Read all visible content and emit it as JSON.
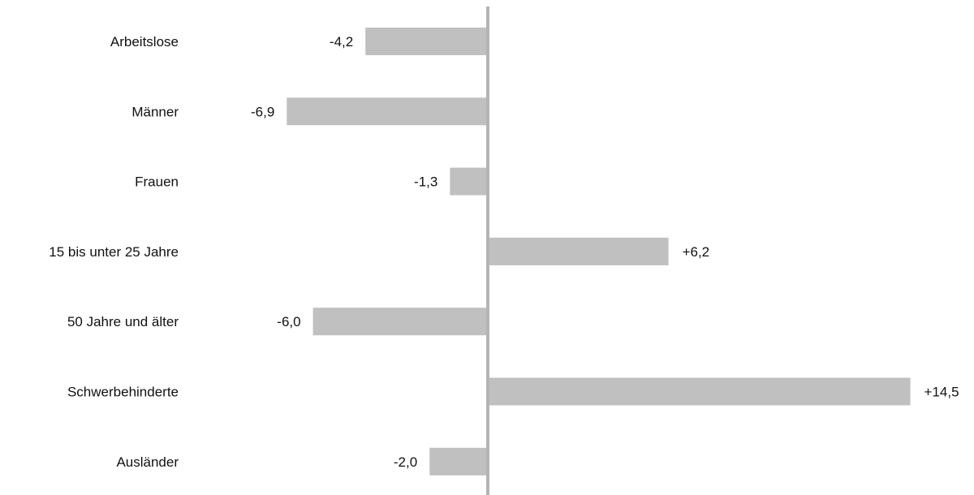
{
  "chart_data": {
    "type": "bar",
    "orientation": "horizontal",
    "categories": [
      "Arbeitslose",
      "Männer",
      "Frauen",
      "15 bis unter 25 Jahre",
      "50 Jahre und älter",
      "Schwerbehinderte",
      "Ausländer"
    ],
    "values": [
      -4.2,
      -6.9,
      -1.3,
      6.2,
      -6.0,
      14.5,
      -2.0
    ],
    "value_labels": [
      "-4,2",
      "-6,9",
      "-1,3",
      "+6,2",
      "-6,0",
      "+14,5",
      "-2,0"
    ],
    "title": "",
    "xlabel": "",
    "ylabel": "",
    "xlim": [
      -7.0,
      14.5
    ],
    "grid": false,
    "legend": "none",
    "bar_color": "#c0c0c0",
    "axis_color": "#b4b4b4"
  }
}
